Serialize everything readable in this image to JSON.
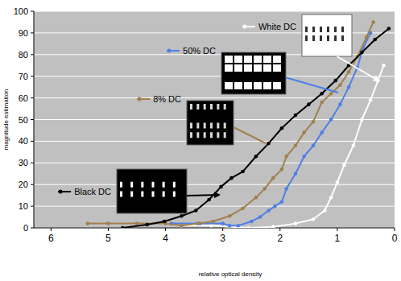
{
  "chart_data": {
    "type": "line",
    "x_label": "relative optical density",
    "y_label": "magnitude estimation",
    "xlim": [
      6.3,
      0
    ],
    "ylim": [
      0,
      100
    ],
    "xticks": [
      6,
      5,
      4,
      3,
      2,
      1,
      0
    ],
    "yticks": [
      0,
      10,
      20,
      30,
      40,
      50,
      60,
      70,
      80,
      90,
      100
    ],
    "grid": true,
    "series": [
      {
        "name": "White DC",
        "color": "#ffffff",
        "marker": "circle",
        "x": [
          3.72,
          3.2,
          2.55,
          2.12,
          1.73,
          1.42,
          1.22,
          1.11,
          1.0,
          0.88,
          0.72,
          0.57,
          0.42,
          0.29,
          0.19
        ],
        "values": [
          1,
          1,
          0,
          0.5,
          2,
          4,
          8,
          14,
          21,
          29,
          38,
          50,
          59,
          68,
          75
        ]
      },
      {
        "name": "50% DC",
        "color": "#4f7fe6",
        "marker": "circle",
        "x": [
          3.9,
          3.4,
          3.0,
          2.88,
          2.73,
          2.5,
          2.35,
          2.2,
          2.09,
          1.97,
          1.89,
          1.73,
          1.58,
          1.42,
          1.27,
          1.11,
          0.95,
          0.8,
          0.65,
          0.55,
          0.42
        ],
        "values": [
          2,
          2,
          2,
          1,
          1,
          3,
          5,
          8,
          10,
          12,
          18,
          25,
          33,
          38,
          44,
          50,
          57,
          65,
          74,
          83,
          90
        ]
      },
      {
        "name": "8% DC",
        "color": "#a0804f",
        "marker": "circle",
        "x": [
          5.36,
          5.0,
          4.5,
          4.0,
          3.72,
          3.44,
          3.17,
          2.88,
          2.65,
          2.42,
          2.27,
          2.12,
          1.97,
          1.89,
          1.73,
          1.58,
          1.42,
          1.27,
          1.11,
          0.95,
          0.8,
          0.65,
          0.49,
          0.37
        ],
        "values": [
          2,
          2,
          2,
          2,
          1,
          2,
          3,
          5.5,
          9,
          14,
          18,
          23,
          27,
          33,
          38,
          44,
          49,
          58,
          62,
          66,
          72,
          79,
          88,
          95
        ]
      },
      {
        "name": "Black DC",
        "color": "#000000",
        "marker": "circle",
        "x": [
          4.75,
          4.32,
          4.02,
          3.72,
          3.47,
          3.24,
          3.03,
          2.85,
          2.65,
          2.42,
          2.2,
          1.97,
          1.73,
          1.5,
          1.27,
          1.03,
          0.8,
          0.57,
          0.34,
          0.1
        ],
        "values": [
          0,
          1.5,
          3,
          5.5,
          8,
          13,
          19,
          23,
          26,
          33,
          39,
          46,
          52,
          57,
          62,
          68,
          75,
          81,
          87,
          92
        ]
      }
    ]
  }
}
